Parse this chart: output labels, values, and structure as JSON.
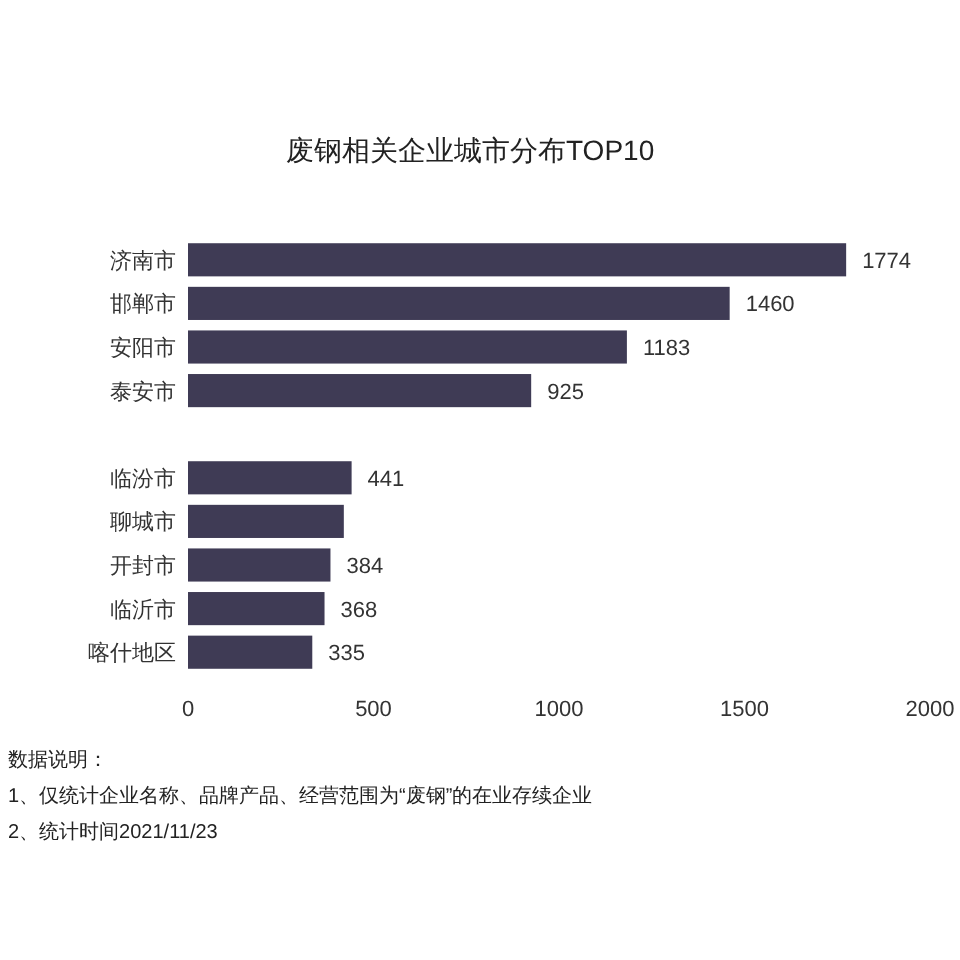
{
  "chart_data": {
    "type": "bar",
    "orientation": "horizontal",
    "title": "废钢相关企业城市分布TOP10",
    "categories": [
      "济南市",
      "邯郸市",
      "安阳市",
      "泰安市",
      null,
      "临汾市",
      "聊城市",
      "开封市",
      "临沂市",
      "喀什地区"
    ],
    "values": [
      1774,
      1460,
      1183,
      925,
      null,
      441,
      420,
      384,
      368,
      335
    ],
    "value_labels": [
      "1774",
      "1460",
      "1183",
      "925",
      null,
      "441",
      null,
      "384",
      "368",
      "335"
    ],
    "color": "#3f3b55",
    "xlim": [
      0,
      2000
    ],
    "xticks": [
      0,
      500,
      1000,
      1500,
      2000
    ],
    "grid": false,
    "annotations": [
      "数据说明：",
      "1、仅统计企业名称、品牌产品、经营范围为“废钢”的在业存续企业",
      "2、统计时间2021/11/23"
    ]
  }
}
